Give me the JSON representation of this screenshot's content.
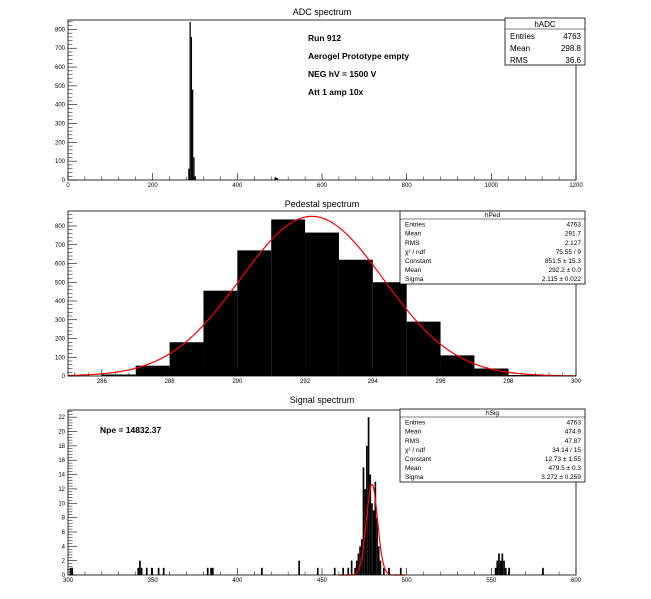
{
  "chart_data": [
    {
      "type": "histogram",
      "title": "ADC spectrum",
      "xlim": [
        0,
        1200
      ],
      "ylim": [
        0,
        850
      ],
      "xticks": [
        0,
        200,
        400,
        600,
        800,
        1000,
        1200
      ],
      "yticks": [
        0,
        100,
        200,
        300,
        400,
        500,
        600,
        700,
        800
      ],
      "bins": [
        {
          "x0": 284,
          "x1": 287,
          "y": 60
        },
        {
          "x0": 287,
          "x1": 290,
          "y": 840
        },
        {
          "x0": 290,
          "x1": 293,
          "y": 760
        },
        {
          "x0": 293,
          "x1": 296,
          "y": 480
        },
        {
          "x0": 296,
          "x1": 299,
          "y": 120
        },
        {
          "x0": 299,
          "x1": 302,
          "y": 20
        },
        {
          "x0": 488,
          "x1": 492,
          "y": 15
        },
        {
          "x0": 492,
          "x1": 496,
          "y": 10
        }
      ],
      "annotations": [
        "Run  912",
        "Aerogel Prototype empty",
        "NEG hV = 1500 V",
        "Att 1 amp 10x"
      ],
      "stats": {
        "name": "hADC",
        "rows": [
          [
            "Entries",
            "4763"
          ],
          [
            "Mean",
            "298.8"
          ],
          [
            "RMS",
            "36.6"
          ]
        ]
      }
    },
    {
      "type": "histogram",
      "title": "Pedestal spectrum",
      "xlim": [
        285,
        300
      ],
      "ylim": [
        0,
        880
      ],
      "xticks": [
        286,
        288,
        290,
        292,
        294,
        296,
        298,
        300
      ],
      "yticks": [
        0,
        100,
        200,
        300,
        400,
        500,
        600,
        700,
        800
      ],
      "bins": [
        {
          "x0": 286,
          "x1": 287,
          "y": 8
        },
        {
          "x0": 287,
          "x1": 288,
          "y": 55
        },
        {
          "x0": 288,
          "x1": 289,
          "y": 180
        },
        {
          "x0": 289,
          "x1": 290,
          "y": 455
        },
        {
          "x0": 290,
          "x1": 291,
          "y": 670
        },
        {
          "x0": 291,
          "x1": 292,
          "y": 835
        },
        {
          "x0": 292,
          "x1": 293,
          "y": 765
        },
        {
          "x0": 293,
          "x1": 294,
          "y": 620
        },
        {
          "x0": 294,
          "x1": 295,
          "y": 500
        },
        {
          "x0": 295,
          "x1": 296,
          "y": 290
        },
        {
          "x0": 296,
          "x1": 297,
          "y": 110
        },
        {
          "x0": 297,
          "x1": 298,
          "y": 40
        },
        {
          "x0": 298,
          "x1": 299,
          "y": 5
        }
      ],
      "fit": {
        "type": "gaussian",
        "constant": 851.5,
        "mean": 292.2,
        "sigma": 2.115,
        "color": "#ff0000"
      },
      "stats": {
        "name": "hPed",
        "rows": [
          [
            "Entries",
            "4763"
          ],
          [
            "Mean",
            "291.7"
          ],
          [
            "RMS",
            "2.127"
          ],
          [
            "χ² / ndf",
            "75.55 / 9"
          ],
          [
            "Constant",
            "851.5 ± 15.3"
          ],
          [
            "Mean",
            "292.2 ± 0.0"
          ],
          [
            "Sigma",
            "2.115 ± 0.022"
          ]
        ]
      }
    },
    {
      "type": "histogram",
      "title": "Signal spectrum",
      "xlim": [
        300,
        600
      ],
      "ylim": [
        0,
        23
      ],
      "xticks": [
        300,
        350,
        400,
        450,
        500,
        550,
        600
      ],
      "yticks": [
        0,
        2,
        4,
        6,
        8,
        10,
        12,
        14,
        16,
        18,
        20,
        22
      ],
      "bins": [
        {
          "x0": 301,
          "x1": 302,
          "y": 1
        },
        {
          "x0": 302,
          "x1": 303,
          "y": 1
        },
        {
          "x0": 341,
          "x1": 342,
          "y": 1
        },
        {
          "x0": 342,
          "x1": 343,
          "y": 2
        },
        {
          "x0": 343,
          "x1": 344,
          "y": 1
        },
        {
          "x0": 346,
          "x1": 347,
          "y": 1
        },
        {
          "x0": 349,
          "x1": 350,
          "y": 1
        },
        {
          "x0": 353,
          "x1": 354,
          "y": 1
        },
        {
          "x0": 356,
          "x1": 357,
          "y": 1
        },
        {
          "x0": 382,
          "x1": 383,
          "y": 1
        },
        {
          "x0": 384,
          "x1": 385,
          "y": 1
        },
        {
          "x0": 385,
          "x1": 386,
          "y": 1
        },
        {
          "x0": 414,
          "x1": 415,
          "y": 1
        },
        {
          "x0": 436,
          "x1": 437,
          "y": 2
        },
        {
          "x0": 447,
          "x1": 448,
          "y": 1
        },
        {
          "x0": 457,
          "x1": 458,
          "y": 1
        },
        {
          "x0": 462,
          "x1": 463,
          "y": 1
        },
        {
          "x0": 465,
          "x1": 466,
          "y": 1
        },
        {
          "x0": 467,
          "x1": 468,
          "y": 2
        },
        {
          "x0": 469,
          "x1": 470,
          "y": 1
        },
        {
          "x0": 470,
          "x1": 471,
          "y": 2
        },
        {
          "x0": 471,
          "x1": 472,
          "y": 3
        },
        {
          "x0": 472,
          "x1": 473,
          "y": 4
        },
        {
          "x0": 473,
          "x1": 474,
          "y": 5
        },
        {
          "x0": 474,
          "x1": 475,
          "y": 15
        },
        {
          "x0": 475,
          "x1": 476,
          "y": 12
        },
        {
          "x0": 476,
          "x1": 477,
          "y": 18
        },
        {
          "x0": 477,
          "x1": 478,
          "y": 22
        },
        {
          "x0": 478,
          "x1": 479,
          "y": 14
        },
        {
          "x0": 479,
          "x1": 480,
          "y": 10
        },
        {
          "x0": 480,
          "x1": 481,
          "y": 9
        },
        {
          "x0": 481,
          "x1": 482,
          "y": 13
        },
        {
          "x0": 482,
          "x1": 483,
          "y": 8
        },
        {
          "x0": 483,
          "x1": 484,
          "y": 4
        },
        {
          "x0": 484,
          "x1": 485,
          "y": 2
        },
        {
          "x0": 486,
          "x1": 487,
          "y": 1
        },
        {
          "x0": 489,
          "x1": 490,
          "y": 1
        },
        {
          "x0": 496,
          "x1": 497,
          "y": 1
        },
        {
          "x0": 552,
          "x1": 553,
          "y": 1
        },
        {
          "x0": 553,
          "x1": 554,
          "y": 2
        },
        {
          "x0": 554,
          "x1": 555,
          "y": 3
        },
        {
          "x0": 555,
          "x1": 556,
          "y": 2
        },
        {
          "x0": 556,
          "x1": 557,
          "y": 3
        },
        {
          "x0": 557,
          "x1": 558,
          "y": 2
        },
        {
          "x0": 558,
          "x1": 559,
          "y": 1
        },
        {
          "x0": 560,
          "x1": 561,
          "y": 1
        },
        {
          "x0": 580,
          "x1": 581,
          "y": 1
        }
      ],
      "fit": {
        "type": "gaussian",
        "constant": 12.73,
        "mean": 479.5,
        "sigma": 3.272,
        "color": "#ff0000"
      },
      "annotations": [
        "Npe = 14832.37"
      ],
      "stats": {
        "name": "hSig",
        "rows": [
          [
            "Entries",
            "4763"
          ],
          [
            "Mean",
            "474.9"
          ],
          [
            "RMS",
            "47.87"
          ],
          [
            "χ² / ndf",
            "34.14 / 15"
          ],
          [
            "Constant",
            "12.73 ± 1.55"
          ],
          [
            "Mean",
            "479.5 ± 0.3"
          ],
          [
            "Sigma",
            "3.272 ± 0.259"
          ]
        ]
      }
    }
  ]
}
